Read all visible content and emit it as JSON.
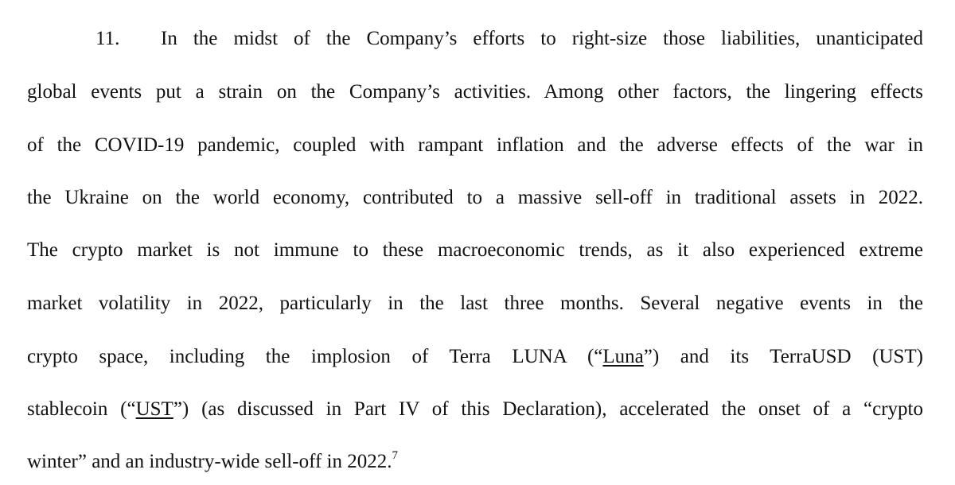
{
  "document": {
    "paragraph_number": "11.",
    "lines": [
      "In the midst of the Company’s efforts to right-size those liabilities, unanticipated",
      "global events put a strain on the Company’s activities.  Among other factors, the lingering effects",
      "of the COVID-19 pandemic, coupled with rampant inflation and the adverse effects of the war in",
      "the Ukraine on the world economy, contributed to a massive sell-off in traditional assets in 2022.",
      "The crypto market is not immune to these macroeconomic trends, as it also experienced extreme",
      "market volatility in 2022, particularly in the last three months.  Several negative events in the",
      {
        "pre": "crypto space, including the implosion of Terra LUNA (“",
        "defined_term": "Luna",
        "post": "”) and its TerraUSD (UST)"
      },
      {
        "pre": "stablecoin (“",
        "defined_term": "UST",
        "post": "”) (as discussed in Part IV of this Declaration), accelerated the onset of a “crypto"
      },
      {
        "pre": "winter” and an industry-wide sell-off in 2022.",
        "footnote_ref": "7"
      }
    ]
  }
}
